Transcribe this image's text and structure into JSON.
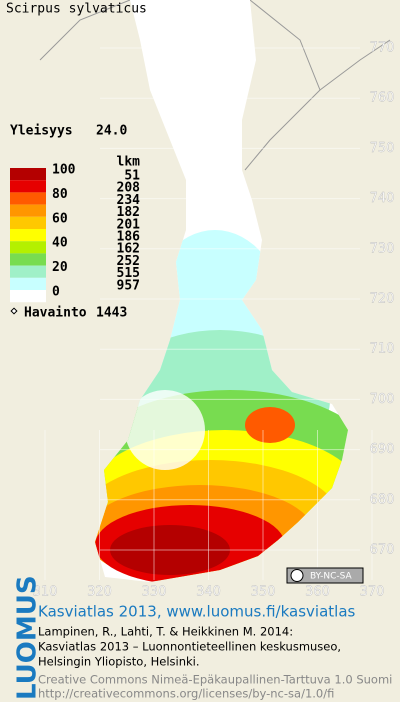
{
  "title": "Scirpus sylvaticus",
  "frequency": {
    "label": "Yleisyys",
    "value": "24.0"
  },
  "legend": {
    "scale": [
      100,
      80,
      60,
      40,
      20,
      0
    ],
    "counts_header": "lkm",
    "counts": [
      51,
      208,
      234,
      182,
      201,
      186,
      162,
      252,
      515,
      957
    ],
    "colors": [
      "#b40000",
      "#e60000",
      "#ff5a00",
      "#ff9600",
      "#ffc800",
      "#ffff00",
      "#b4f000",
      "#78dc50",
      "#a0f0c8",
      "#c8ffff"
    ]
  },
  "observations": {
    "label": "Havainto",
    "value": 1443
  },
  "y_axis_labels": [
    770,
    760,
    750,
    740,
    730,
    720,
    710,
    700,
    690,
    680,
    670
  ],
  "x_axis_labels": [
    310,
    320,
    330,
    340,
    350,
    360,
    370
  ],
  "license_badge": "BY-NC-SA",
  "footer": {
    "logo": "LUOMUS",
    "heading": "Kasviatlas 2013, www.luomus.fi/kasviatlas",
    "citation": [
      "Lampinen, R., Lahti, T. & Heikkinen M. 2014:",
      "Kasviatlas 2013 – Luonnontieteellinen keskusmuseo,",
      "Helsingin Yliopisto, Helsinki."
    ],
    "license": [
      "Creative Commons Nimeä-Epäkaupallinen-Tarttuva 1.0 Suomi",
      "http://creativecommons.org/licenses/by-nc-sa/1.0/fi"
    ]
  }
}
